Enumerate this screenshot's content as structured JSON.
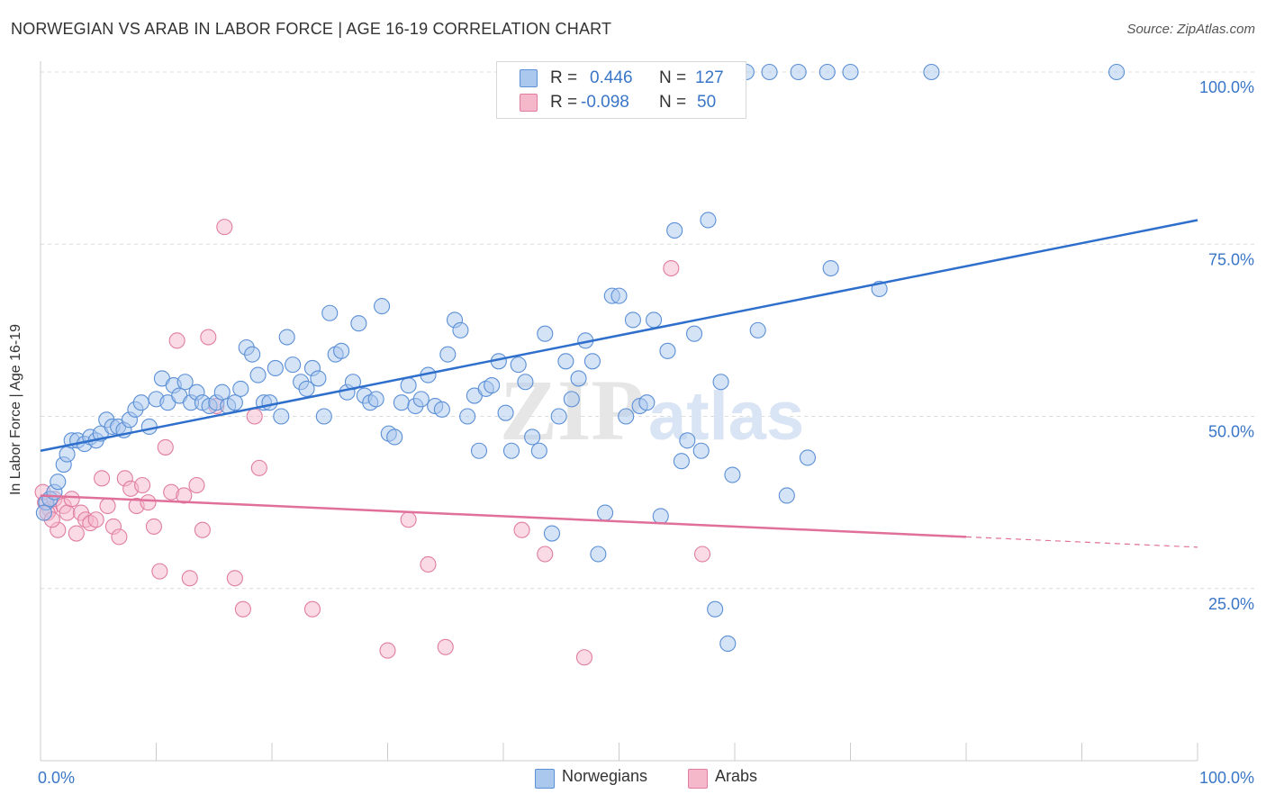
{
  "title": "NORWEGIAN VS ARAB IN LABOR FORCE | AGE 16-19 CORRELATION CHART",
  "source": "Source: ZipAtlas.com",
  "watermark": {
    "zip": "ZIP",
    "atlas": "atlas"
  },
  "colors": {
    "blue_fill": "#aac7ee",
    "blue_stroke": "#5b8fd6",
    "blue_line": "#2f6fcc",
    "pink_fill": "#f5b8cb",
    "pink_stroke": "#e07ca0",
    "pink_line": "#e0709a",
    "grid": "#dcdcdc",
    "axis_text": "#3a76c7"
  },
  "legend": {
    "rows": [
      {
        "r_label": "R =",
        "r_value": "0.446",
        "n_label": "N =",
        "n_value": "127"
      },
      {
        "r_label": "R =",
        "r_value": "-0.098",
        "n_label": "N =",
        "n_value": "50"
      }
    ]
  },
  "bottom_legend": {
    "norwegians": "Norwegians",
    "arabs": "Arabs"
  },
  "chart_data": {
    "type": "scatter",
    "title": "NORWEGIAN VS ARAB IN LABOR FORCE | AGE 16-19 CORRELATION CHART",
    "xlabel": "",
    "ylabel": "In Labor Force | Age 16-19",
    "xlim": [
      0,
      100
    ],
    "ylim": [
      0,
      100
    ],
    "x_tick_labels": [
      "0.0%",
      "100.0%"
    ],
    "y_tick_labels": [
      "100.0%",
      "75.0%",
      "50.0%",
      "25.0%"
    ],
    "y_ticks": [
      100,
      75,
      50,
      25
    ],
    "series": [
      {
        "name": "Norwegians",
        "r": 0.446,
        "n": 127,
        "trend": {
          "x": [
            0,
            100
          ],
          "y": [
            45,
            78.5
          ],
          "dash_from": null
        },
        "points": [
          [
            0.5,
            37.5
          ],
          [
            0.8,
            38
          ],
          [
            1.2,
            39
          ],
          [
            1.5,
            40.5
          ],
          [
            2,
            43
          ],
          [
            2.3,
            44.5
          ],
          [
            2.7,
            46.5
          ],
          [
            3.2,
            46.5
          ],
          [
            3.8,
            46
          ],
          [
            4.3,
            47
          ],
          [
            4.8,
            46.5
          ],
          [
            5.2,
            47.5
          ],
          [
            5.7,
            49.5
          ],
          [
            6.2,
            48.5
          ],
          [
            6.7,
            48.5
          ],
          [
            7.2,
            48
          ],
          [
            7.7,
            49.5
          ],
          [
            8.2,
            51
          ],
          [
            8.7,
            52
          ],
          [
            9.4,
            48.5
          ],
          [
            10,
            52.5
          ],
          [
            10.5,
            55.5
          ],
          [
            11,
            52
          ],
          [
            11.5,
            54.5
          ],
          [
            12,
            53
          ],
          [
            12.5,
            55
          ],
          [
            13,
            52
          ],
          [
            13.5,
            53.5
          ],
          [
            14,
            52
          ],
          [
            14.6,
            51.5
          ],
          [
            15.2,
            52
          ],
          [
            15.7,
            53.5
          ],
          [
            16.2,
            51.5
          ],
          [
            16.8,
            52
          ],
          [
            17.3,
            54
          ],
          [
            17.8,
            60
          ],
          [
            18.3,
            59
          ],
          [
            18.8,
            56
          ],
          [
            19.3,
            52
          ],
          [
            19.8,
            52
          ],
          [
            20.3,
            57
          ],
          [
            20.8,
            50
          ],
          [
            21.3,
            61.5
          ],
          [
            21.8,
            57.5
          ],
          [
            22.5,
            55
          ],
          [
            23,
            54
          ],
          [
            23.5,
            57
          ],
          [
            24,
            55.5
          ],
          [
            24.5,
            50
          ],
          [
            25,
            65
          ],
          [
            25.5,
            59
          ],
          [
            26,
            59.5
          ],
          [
            26.5,
            53.5
          ],
          [
            27,
            55
          ],
          [
            27.5,
            63.5
          ],
          [
            28,
            53
          ],
          [
            28.5,
            52
          ],
          [
            29,
            52.5
          ],
          [
            29.5,
            66
          ],
          [
            30.1,
            47.5
          ],
          [
            30.6,
            47
          ],
          [
            31.2,
            52
          ],
          [
            31.8,
            54.5
          ],
          [
            32.4,
            51.5
          ],
          [
            32.9,
            52.5
          ],
          [
            33.5,
            56
          ],
          [
            34.1,
            51.5
          ],
          [
            34.7,
            51
          ],
          [
            35.2,
            59
          ],
          [
            35.8,
            64
          ],
          [
            36.3,
            62.5
          ],
          [
            36.9,
            50
          ],
          [
            37.5,
            53
          ],
          [
            37.9,
            45
          ],
          [
            38.5,
            54
          ],
          [
            39,
            54.5
          ],
          [
            39.6,
            58
          ],
          [
            40.2,
            50.5
          ],
          [
            40.7,
            45
          ],
          [
            41.3,
            57.5
          ],
          [
            41.9,
            55
          ],
          [
            42.5,
            47
          ],
          [
            43.1,
            45
          ],
          [
            43.6,
            62
          ],
          [
            44.2,
            33
          ],
          [
            44.8,
            50
          ],
          [
            45.4,
            58
          ],
          [
            45.9,
            52.5
          ],
          [
            46.5,
            55.5
          ],
          [
            47.1,
            61
          ],
          [
            47.7,
            58
          ],
          [
            48.2,
            30
          ],
          [
            48.8,
            36
          ],
          [
            49.4,
            67.5
          ],
          [
            50,
            67.5
          ],
          [
            50.6,
            50
          ],
          [
            51.2,
            64
          ],
          [
            51.8,
            51.5
          ],
          [
            52.4,
            52
          ],
          [
            53,
            64
          ],
          [
            53.6,
            35.5
          ],
          [
            54.2,
            59.5
          ],
          [
            54.8,
            77
          ],
          [
            55.4,
            43.5
          ],
          [
            55.9,
            46.5
          ],
          [
            56.5,
            62
          ],
          [
            57.1,
            45
          ],
          [
            57.7,
            78.5
          ],
          [
            58.3,
            22
          ],
          [
            58.8,
            55
          ],
          [
            59.4,
            17
          ],
          [
            59.8,
            41.5
          ],
          [
            61,
            100
          ],
          [
            62,
            62.5
          ],
          [
            63,
            100
          ],
          [
            64.5,
            38.5
          ],
          [
            65.5,
            100
          ],
          [
            66.3,
            44
          ],
          [
            68,
            100
          ],
          [
            68.3,
            71.5
          ],
          [
            70,
            100
          ],
          [
            72.5,
            68.5
          ],
          [
            77,
            100
          ],
          [
            93,
            100
          ],
          [
            0.3,
            36
          ]
        ]
      },
      {
        "name": "Arabs",
        "r": -0.098,
        "n": 50,
        "trend": {
          "x": [
            0,
            100
          ],
          "y": [
            38.5,
            31
          ],
          "dash_from": 80
        },
        "points": [
          [
            0.4,
            37.5
          ],
          [
            0.8,
            36.5
          ],
          [
            1.2,
            38
          ],
          [
            1.5,
            33.5
          ],
          [
            2,
            37
          ],
          [
            2.3,
            36
          ],
          [
            2.7,
            38
          ],
          [
            3.1,
            33
          ],
          [
            3.5,
            36
          ],
          [
            3.9,
            35
          ],
          [
            4.3,
            34.5
          ],
          [
            4.8,
            35
          ],
          [
            5.3,
            41
          ],
          [
            5.8,
            37
          ],
          [
            6.3,
            34
          ],
          [
            6.8,
            32.5
          ],
          [
            7.3,
            41
          ],
          [
            7.8,
            39.5
          ],
          [
            8.3,
            37
          ],
          [
            8.8,
            40
          ],
          [
            9.3,
            37.5
          ],
          [
            9.8,
            34
          ],
          [
            10.3,
            27.5
          ],
          [
            10.8,
            45.5
          ],
          [
            11.3,
            39
          ],
          [
            11.8,
            61
          ],
          [
            12.4,
            38.5
          ],
          [
            12.9,
            26.5
          ],
          [
            13.5,
            40
          ],
          [
            14,
            33.5
          ],
          [
            14.5,
            61.5
          ],
          [
            15.2,
            51.5
          ],
          [
            15.9,
            77.5
          ],
          [
            16.8,
            26.5
          ],
          [
            17.5,
            22
          ],
          [
            18.5,
            50
          ],
          [
            18.9,
            42.5
          ],
          [
            23.5,
            22
          ],
          [
            30,
            16
          ],
          [
            31.8,
            35
          ],
          [
            33.5,
            28.5
          ],
          [
            35,
            16.5
          ],
          [
            41.6,
            33.5
          ],
          [
            43.6,
            30
          ],
          [
            47,
            15
          ],
          [
            54.5,
            71.5
          ],
          [
            57.2,
            30
          ],
          [
            0.2,
            39
          ],
          [
            0.6,
            36
          ],
          [
            1,
            35
          ]
        ]
      }
    ]
  }
}
